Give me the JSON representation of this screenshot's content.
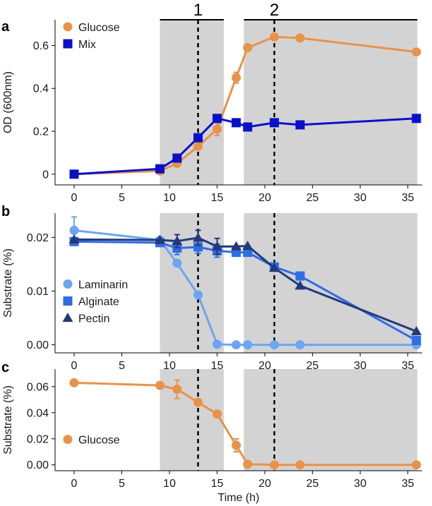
{
  "figure": {
    "x_axis_title": "Time (h)"
  },
  "periods": [
    {
      "label": "1",
      "x_start": 9,
      "x_end": 15.7,
      "marker_x": 13
    },
    {
      "label": "2",
      "x_start": 17.8,
      "x_end": 36,
      "marker_x": 21
    }
  ],
  "colors": {
    "glucose": "#E8924A",
    "mix": "#0A10C8",
    "laminarin": "#6AA6F2",
    "alginate": "#2F6CE6",
    "pectin": "#223A78",
    "shade": "#D3D3D3"
  },
  "chart_data": [
    {
      "panel": "a",
      "type": "line",
      "ylabel": "OD (600nm)",
      "xlim": [
        -2,
        36.5
      ],
      "ylim": [
        -0.05,
        0.72
      ],
      "yticks": [
        0,
        0.2,
        0.4,
        0.6
      ],
      "ytick_labels": [
        "0",
        "0.2",
        "0.4",
        "0.6"
      ],
      "xticks": [
        0,
        5,
        10,
        15,
        20,
        25,
        30,
        35
      ],
      "xtick_labels": [
        "0",
        "5",
        "10",
        "15",
        "20",
        "25",
        "30",
        "35"
      ],
      "legend": "top-left",
      "series": [
        {
          "name": "Glucose",
          "key": "glucose",
          "marker": "circle",
          "x": [
            0,
            9,
            10.8,
            13,
            15,
            17,
            18.2,
            21,
            23.7,
            35.9
          ],
          "y": [
            0,
            0.015,
            0.05,
            0.13,
            0.21,
            0.45,
            0.59,
            0.64,
            0.635,
            0.57
          ],
          "err": [
            0,
            0,
            0.012,
            0.015,
            0.03,
            0.025,
            0.01,
            0,
            0,
            0
          ]
        },
        {
          "name": "Mix",
          "key": "mix",
          "marker": "square",
          "x": [
            0,
            9,
            10.8,
            13,
            15,
            17,
            18.2,
            21,
            23.7,
            35.9
          ],
          "y": [
            0,
            0.025,
            0.075,
            0.17,
            0.26,
            0.24,
            0.22,
            0.24,
            0.23,
            0.26
          ],
          "err": [
            0,
            0,
            0,
            0,
            0,
            0,
            0,
            0,
            0,
            0
          ]
        }
      ]
    },
    {
      "panel": "b",
      "type": "line",
      "ylabel": "Substrate (%)",
      "xlim": [
        -2,
        36.5
      ],
      "ylim": [
        -0.0015,
        0.0245
      ],
      "yticks": [
        0,
        0.01,
        0.02
      ],
      "ytick_labels": [
        "0.00",
        "0.01",
        "0.02"
      ],
      "xticks": [
        0,
        5,
        10,
        15,
        20,
        25,
        30,
        35
      ],
      "xtick_labels": [
        "0",
        "5",
        "10",
        "15",
        "20",
        "25",
        "30",
        "35"
      ],
      "legend": "middle-left",
      "series": [
        {
          "name": "Laminarin",
          "key": "laminarin",
          "marker": "circle",
          "x": [
            0,
            9,
            10.8,
            13,
            15,
            17,
            18.2,
            21,
            23.7,
            35.9
          ],
          "y": [
            0.0213,
            0.0195,
            0.0152,
            0.0093,
            0.0001,
            0,
            0,
            0,
            0,
            0
          ],
          "err": [
            0.0025,
            0,
            0,
            0,
            0,
            0,
            0,
            0,
            0,
            0
          ]
        },
        {
          "name": "Alginate",
          "key": "alginate",
          "marker": "square",
          "x": [
            0,
            9,
            10.8,
            13,
            15,
            17,
            18.2,
            21,
            23.7,
            35.9
          ],
          "y": [
            0.0192,
            0.019,
            0.018,
            0.0182,
            0.0175,
            0.0172,
            0.0172,
            0.0145,
            0.0128,
            0.0008
          ],
          "err": [
            0,
            0,
            0.0012,
            0.0012,
            0.0012,
            0,
            0,
            0,
            0,
            0
          ]
        },
        {
          "name": "Pectin",
          "key": "pectin",
          "marker": "triangle",
          "x": [
            0,
            9,
            10.8,
            13,
            15,
            17,
            18.2,
            21,
            23.7,
            35.9
          ],
          "y": [
            0.0196,
            0.0195,
            0.0193,
            0.0199,
            0.0183,
            0.0183,
            0.0184,
            0.0143,
            0.011,
            0.0025
          ],
          "err": [
            0,
            0,
            0.0012,
            0.0014,
            0.0015,
            0,
            0,
            0,
            0,
            0
          ]
        }
      ]
    },
    {
      "panel": "c",
      "type": "line",
      "ylabel": "Substrate (%)",
      "xlim": [
        -2,
        36.5
      ],
      "ylim": [
        -0.0045,
        0.0735
      ],
      "yticks": [
        0,
        0.02,
        0.04,
        0.06
      ],
      "ytick_labels": [
        "0.00",
        "0.02",
        "0.04",
        "0.06"
      ],
      "xticks": [
        0,
        5,
        10,
        15,
        20,
        25,
        30,
        35
      ],
      "xtick_labels": [
        "0",
        "5",
        "10",
        "15",
        "20",
        "25",
        "30",
        "35"
      ],
      "legend": "bottom-left",
      "series": [
        {
          "name": "Glucose",
          "key": "glucose",
          "marker": "circle",
          "x": [
            0,
            9,
            10.8,
            13,
            15,
            17,
            18.2,
            21,
            23.7,
            35.9
          ],
          "y": [
            0.063,
            0.061,
            0.058,
            0.048,
            0.039,
            0.015,
            0.0005,
            0,
            0,
            0
          ],
          "err": [
            0,
            0,
            0.007,
            0,
            0,
            0.005,
            0,
            0,
            0,
            0
          ]
        }
      ]
    }
  ]
}
